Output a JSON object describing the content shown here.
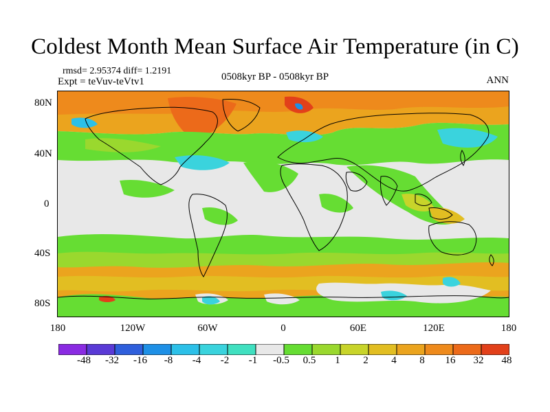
{
  "title": "Coldest Month Mean Surface Air Temperature (in C)",
  "stat_line": "rmsd= 2.95374 diff= 1.2191",
  "expt_line": "Expt = teVuv-teVtv1",
  "period": "0508kyr BP - 0508kyr BP",
  "season": "ANN",
  "lat_labels": [
    "80N",
    "40N",
    "0",
    "40S",
    "80S"
  ],
  "lon_labels": [
    "180",
    "120W",
    "60W",
    "0",
    "60E",
    "120E",
    "180"
  ],
  "colorbar": {
    "colors": [
      "#8a2be2",
      "#5a3ad6",
      "#2f5fdc",
      "#1e90e6",
      "#2cc0e8",
      "#3ad3dd",
      "#40e0c0",
      "#e8e8e8",
      "#66dd33",
      "#9ad82e",
      "#c8d42a",
      "#e2be22",
      "#eba41e",
      "#ee8a1c",
      "#ec6a1a",
      "#e2401a"
    ],
    "labels": [
      "-48",
      "-32",
      "-16",
      "-8",
      "-4",
      "-2",
      "-1",
      "-0.5",
      "0.5",
      "1",
      "2",
      "4",
      "8",
      "16",
      "32",
      "48"
    ]
  }
}
